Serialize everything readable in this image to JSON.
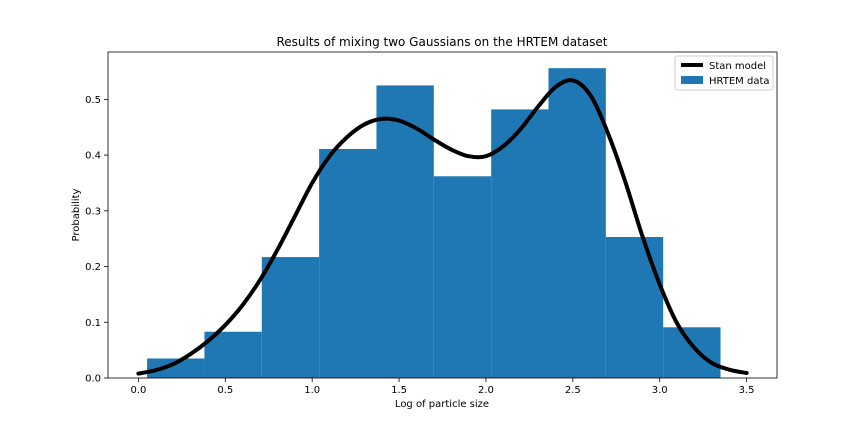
{
  "chart_data": {
    "type": "bar",
    "title": "Results of mixing two Gaussians on the HRTEM dataset",
    "xlabel": "Log of particle size",
    "ylabel": "Probability",
    "xlim": [
      -0.175,
      3.675
    ],
    "ylim": [
      0,
      0.585
    ],
    "xticks": [
      0.0,
      0.5,
      1.0,
      1.5,
      2.0,
      2.5,
      3.0,
      3.5
    ],
    "xtick_labels": [
      "0.0",
      "0.5",
      "1.0",
      "1.5",
      "2.0",
      "2.5",
      "3.0",
      "3.5"
    ],
    "yticks": [
      0.0,
      0.1,
      0.2,
      0.3,
      0.4,
      0.5
    ],
    "ytick_labels": [
      "0.0",
      "0.1",
      "0.2",
      "0.3",
      "0.4",
      "0.5"
    ],
    "grid": false,
    "legend_position": "top-right",
    "colors": {
      "bars": "#1f77b4",
      "line": "#000000"
    },
    "series": [
      {
        "name": "HRTEM data",
        "type": "histogram",
        "bin_edges": [
          0.05,
          0.38,
          0.71,
          1.04,
          1.37,
          1.7,
          2.03,
          2.36,
          2.69,
          3.02,
          3.35
        ],
        "values": [
          0.035,
          0.083,
          0.217,
          0.411,
          0.525,
          0.362,
          0.482,
          0.556,
          0.253,
          0.091
        ]
      },
      {
        "name": "Stan model",
        "type": "line",
        "x": [
          0.0,
          0.1,
          0.2,
          0.3,
          0.4,
          0.5,
          0.6,
          0.7,
          0.8,
          0.9,
          1.0,
          1.1,
          1.2,
          1.3,
          1.4,
          1.5,
          1.6,
          1.7,
          1.8,
          1.9,
          2.0,
          2.1,
          2.2,
          2.3,
          2.4,
          2.5,
          2.6,
          2.7,
          2.8,
          2.9,
          3.0,
          3.1,
          3.2,
          3.3,
          3.4,
          3.5
        ],
        "y": [
          0.008,
          0.014,
          0.025,
          0.043,
          0.066,
          0.095,
          0.131,
          0.176,
          0.23,
          0.29,
          0.35,
          0.398,
          0.432,
          0.455,
          0.465,
          0.462,
          0.448,
          0.428,
          0.41,
          0.398,
          0.398,
          0.416,
          0.447,
          0.487,
          0.522,
          0.534,
          0.508,
          0.441,
          0.354,
          0.255,
          0.168,
          0.098,
          0.054,
          0.027,
          0.015,
          0.009
        ]
      }
    ]
  }
}
